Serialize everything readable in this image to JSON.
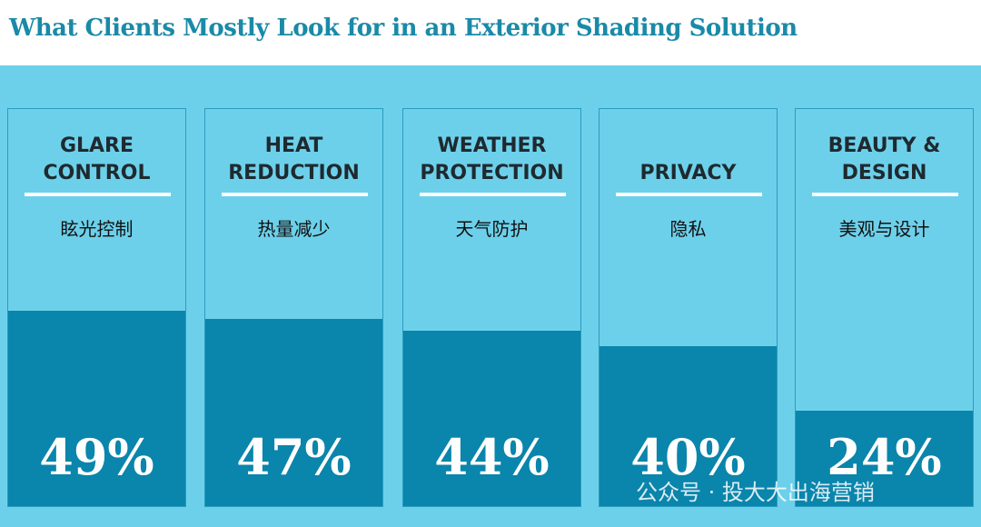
{
  "chart_data": {
    "type": "bar",
    "title": "What Clients Mostly Look for in an Exterior Shading Solution",
    "categories": [
      "GLARE CONTROL",
      "HEAT REDUCTION",
      "WEATHER PROTECTION",
      "PRIVACY",
      "BEAUTY & DESIGN"
    ],
    "subtitles": [
      "眩光控制",
      "热量减少",
      "天气防护",
      "隐私",
      "美观与设计"
    ],
    "values": [
      49,
      47,
      44,
      40,
      24
    ],
    "value_labels": [
      "49%",
      "47%",
      "44%",
      "40%",
      "24%"
    ],
    "ylim": [
      0,
      100
    ],
    "color": "#0a85ac",
    "watermark": "公众号 · 投大大出海营销"
  }
}
